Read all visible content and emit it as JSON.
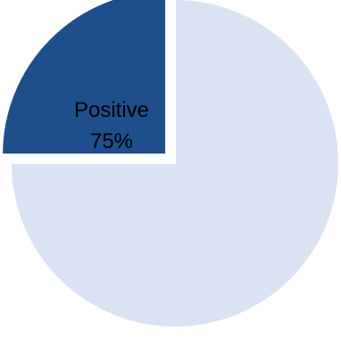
{
  "chart_data": {
    "type": "pie",
    "title": "",
    "start_angle_deg": 90,
    "direction": "clockwise",
    "slices": [
      {
        "label": "Positive",
        "value": 75,
        "value_label": "75%",
        "color": "#dae3f3",
        "exploded": false
      },
      {
        "label": "",
        "value": 25,
        "value_label": "",
        "color": "#1f4e8c",
        "exploded": true
      }
    ],
    "legend": "none"
  }
}
